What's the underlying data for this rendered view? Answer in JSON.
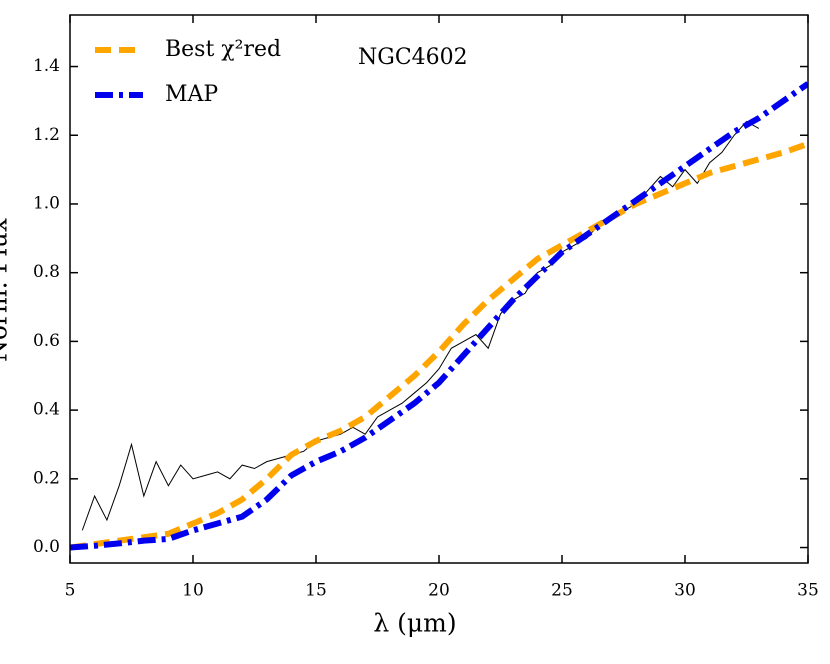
{
  "chart_data": {
    "type": "line",
    "annotation": "NGC4602",
    "xlabel": "λ (μm)",
    "ylabel": "Norm. Flux",
    "xlim": [
      5,
      35
    ],
    "ylim": [
      -0.045,
      1.55
    ],
    "xticks": [
      5,
      10,
      15,
      20,
      25,
      30,
      35
    ],
    "yticks": [
      {
        "value": 0,
        "label": "0.0"
      },
      0.2,
      0.4,
      0.6,
      0.8,
      {
        "value": 1,
        "label": "1.0"
      },
      1.2,
      1.4
    ],
    "legend": "upper left",
    "series": [
      {
        "color": "#000000",
        "style": "solid",
        "x": [
          5.5,
          6.0,
          6.5,
          7.0,
          7.5,
          8.0,
          8.5,
          9.0,
          9.5,
          10.0,
          10.5,
          11.0,
          11.5,
          12.0,
          12.5,
          13.0,
          13.5,
          14.0,
          14.5,
          15.0,
          15.5,
          16.0,
          16.5,
          17.0,
          17.5,
          18.0,
          18.5,
          19.0,
          19.5,
          20.0,
          20.5,
          21.0,
          21.5,
          22.0,
          22.5,
          23.0,
          23.5,
          24.0,
          24.5,
          25.0,
          25.5,
          26.0,
          26.5,
          27.0,
          27.5,
          28.0,
          28.5,
          29.0,
          29.5,
          30.0,
          30.5,
          31.0,
          31.5,
          32.0,
          32.5,
          33.0
        ],
        "values": [
          0.05,
          0.15,
          0.08,
          0.18,
          0.3,
          0.15,
          0.25,
          0.18,
          0.24,
          0.2,
          0.21,
          0.22,
          0.2,
          0.24,
          0.23,
          0.25,
          0.26,
          0.27,
          0.28,
          0.31,
          0.32,
          0.33,
          0.35,
          0.33,
          0.38,
          0.4,
          0.42,
          0.45,
          0.48,
          0.52,
          0.58,
          0.6,
          0.62,
          0.58,
          0.68,
          0.72,
          0.74,
          0.8,
          0.82,
          0.86,
          0.88,
          0.9,
          0.94,
          0.96,
          0.98,
          1.0,
          1.04,
          1.08,
          1.05,
          1.1,
          1.06,
          1.12,
          1.15,
          1.2,
          1.24,
          1.22
        ]
      },
      {
        "name": "Best χ²red",
        "color": "#ffa500",
        "style": "dashed",
        "x": [
          5,
          6,
          7,
          8,
          9,
          10,
          11,
          12,
          13,
          14,
          15,
          16,
          17,
          18,
          19,
          20,
          21,
          22,
          23,
          24,
          25,
          26,
          27,
          28,
          29,
          30,
          31,
          32,
          33,
          34,
          35
        ],
        "values": [
          0.0,
          0.01,
          0.02,
          0.03,
          0.04,
          0.07,
          0.1,
          0.14,
          0.2,
          0.27,
          0.31,
          0.34,
          0.38,
          0.44,
          0.5,
          0.57,
          0.65,
          0.72,
          0.78,
          0.84,
          0.88,
          0.92,
          0.96,
          1.0,
          1.03,
          1.06,
          1.09,
          1.11,
          1.13,
          1.15,
          1.175
        ]
      },
      {
        "name": "MAP",
        "color": "#0000ee",
        "style": "dashdot",
        "x": [
          5,
          6,
          7,
          8,
          9,
          10,
          11,
          12,
          13,
          14,
          15,
          16,
          17,
          18,
          19,
          20,
          21,
          22,
          23,
          24,
          25,
          26,
          27,
          28,
          29,
          30,
          31,
          32,
          33,
          34,
          35
        ],
        "values": [
          0.0,
          0.005,
          0.012,
          0.02,
          0.025,
          0.05,
          0.07,
          0.09,
          0.14,
          0.21,
          0.25,
          0.28,
          0.32,
          0.37,
          0.42,
          0.48,
          0.56,
          0.64,
          0.72,
          0.79,
          0.86,
          0.91,
          0.96,
          1.01,
          1.06,
          1.11,
          1.16,
          1.21,
          1.25,
          1.3,
          1.35
        ]
      }
    ]
  }
}
